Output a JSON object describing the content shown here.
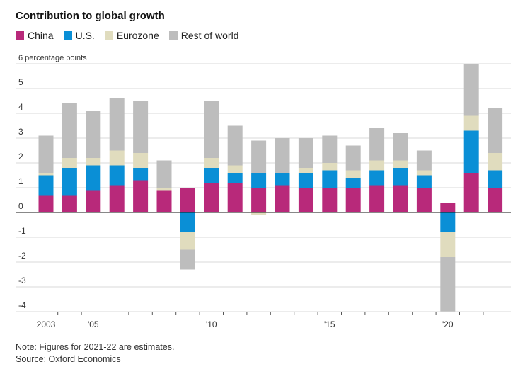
{
  "chart_data": {
    "type": "bar",
    "stacked": true,
    "title": "Contribution to global growth",
    "ylabel": "6 percentage points",
    "ylim": [
      -4,
      6
    ],
    "yticks": [
      6,
      5,
      4,
      3,
      2,
      1,
      0,
      -1,
      -2,
      -3,
      -4
    ],
    "ytick_labels": [
      "6 percentage points",
      "5",
      "4",
      "3",
      "2",
      "1",
      "0",
      "-1",
      "-2",
      "-3",
      "-4"
    ],
    "x": [
      2003,
      2004,
      2005,
      2006,
      2007,
      2008,
      2009,
      2010,
      2011,
      2012,
      2013,
      2014,
      2015,
      2016,
      2017,
      2018,
      2019,
      2020,
      2021,
      2022
    ],
    "xtick_labels": [
      {
        "year": 2003,
        "label": "2003"
      },
      {
        "year": 2005,
        "label": "'05"
      },
      {
        "year": 2010,
        "label": "'10"
      },
      {
        "year": 2015,
        "label": "'15"
      },
      {
        "year": 2020,
        "label": "'20"
      }
    ],
    "series": [
      {
        "name": "China",
        "color": "#b8297a",
        "values": [
          0.7,
          0.7,
          0.9,
          1.1,
          1.3,
          0.9,
          1.0,
          1.2,
          1.2,
          1.0,
          1.1,
          1.0,
          1.0,
          1.0,
          1.1,
          1.1,
          1.0,
          0.4,
          1.6,
          1.0
        ]
      },
      {
        "name": "U.S.",
        "color": "#0a8fd6",
        "values": [
          0.8,
          1.1,
          1.0,
          0.8,
          0.5,
          0.0,
          -0.8,
          0.6,
          0.4,
          0.6,
          0.5,
          0.6,
          0.7,
          0.4,
          0.6,
          0.7,
          0.5,
          -0.8,
          1.7,
          0.7
        ]
      },
      {
        "name": "Eurozone",
        "color": "#e0dcbe",
        "values": [
          0.1,
          0.4,
          0.3,
          0.6,
          0.6,
          0.1,
          -0.7,
          0.4,
          0.3,
          -0.1,
          0.0,
          0.2,
          0.3,
          0.3,
          0.4,
          0.3,
          0.2,
          -1.0,
          0.6,
          0.7
        ]
      },
      {
        "name": "Rest of world",
        "color": "#bdbdbd",
        "values": [
          1.5,
          2.2,
          1.9,
          2.1,
          2.1,
          1.1,
          -0.8,
          2.3,
          1.6,
          1.3,
          1.4,
          1.2,
          1.1,
          1.0,
          1.3,
          1.1,
          0.8,
          -2.2,
          2.1,
          1.8
        ]
      }
    ]
  },
  "footer": {
    "note": "Note: Figures for 2021-22 are estimates.",
    "source": "Source: Oxford Economics"
  }
}
